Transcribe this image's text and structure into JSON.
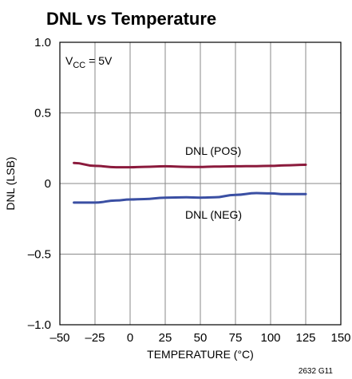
{
  "chart_data": {
    "type": "line",
    "title": "DNL vs Temperature",
    "xlabel": "TEMPERATURE (°C)",
    "ylabel": "DNL (LSB)",
    "xlim": [
      -50,
      150
    ],
    "ylim": [
      -1.0,
      1.0
    ],
    "x_ticks": [
      -50,
      -25,
      0,
      25,
      50,
      75,
      100,
      125,
      150
    ],
    "x_tick_labels": [
      "–50",
      "–25",
      "0",
      "25",
      "50",
      "75",
      "100",
      "125",
      "150"
    ],
    "y_ticks": [
      1.0,
      0.5,
      0,
      -0.5,
      -1.0
    ],
    "y_tick_labels": [
      "1.0",
      "0.5",
      "0",
      "–0.5",
      "–1.0"
    ],
    "grid": true,
    "series": [
      {
        "name": "DNL (POS)",
        "color": "#8b1a3c",
        "x": [
          -40,
          -25,
          -10,
          0,
          10,
          25,
          40,
          50,
          60,
          75,
          90,
          100,
          110,
          125
        ],
        "y": [
          0.145,
          0.125,
          0.115,
          0.115,
          0.118,
          0.122,
          0.118,
          0.117,
          0.12,
          0.122,
          0.123,
          0.125,
          0.128,
          0.133
        ]
      },
      {
        "name": "DNL (NEG)",
        "color": "#3a4fa3",
        "x": [
          -40,
          -25,
          -10,
          0,
          10,
          25,
          40,
          50,
          60,
          75,
          90,
          100,
          110,
          125
        ],
        "y": [
          -0.135,
          -0.135,
          -0.12,
          -0.113,
          -0.11,
          -0.1,
          -0.098,
          -0.1,
          -0.098,
          -0.08,
          -0.068,
          -0.07,
          -0.075,
          -0.075
        ]
      }
    ],
    "annotations": {
      "vcc_main": "V",
      "vcc_sub": "CC",
      "vcc_rest": " = 5V",
      "pos_label": "DNL (POS)",
      "neg_label": "DNL (NEG)"
    },
    "footnote": "2632 G11"
  }
}
